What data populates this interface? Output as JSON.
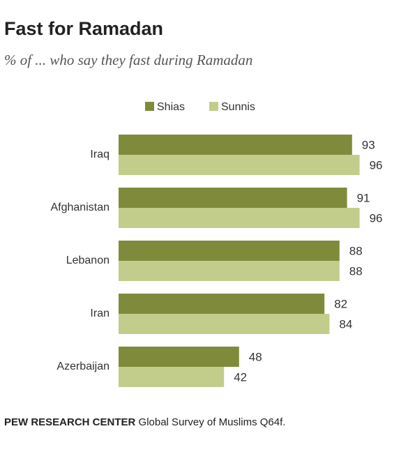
{
  "chart_data": {
    "type": "bar",
    "orientation": "horizontal",
    "title": "Fast for Ramadan",
    "subtitle": "% of ... who say they fast during Ramadan",
    "categories": [
      "Iraq",
      "Afghanistan",
      "Lebanon",
      "Iran",
      "Azerbaijan"
    ],
    "series": [
      {
        "name": "Shias",
        "color": "#7f8b3a",
        "values": [
          93,
          91,
          88,
          82,
          48
        ]
      },
      {
        "name": "Sunnis",
        "color": "#c2cd8c",
        "values": [
          96,
          96,
          88,
          84,
          42
        ]
      }
    ],
    "xlim": [
      0,
      100
    ],
    "grid": false,
    "legend": "top-center",
    "data_labels": true
  },
  "source": {
    "org": "PEW RESEARCH CENTER",
    "text": "Global Survey of Muslims Q64f."
  }
}
